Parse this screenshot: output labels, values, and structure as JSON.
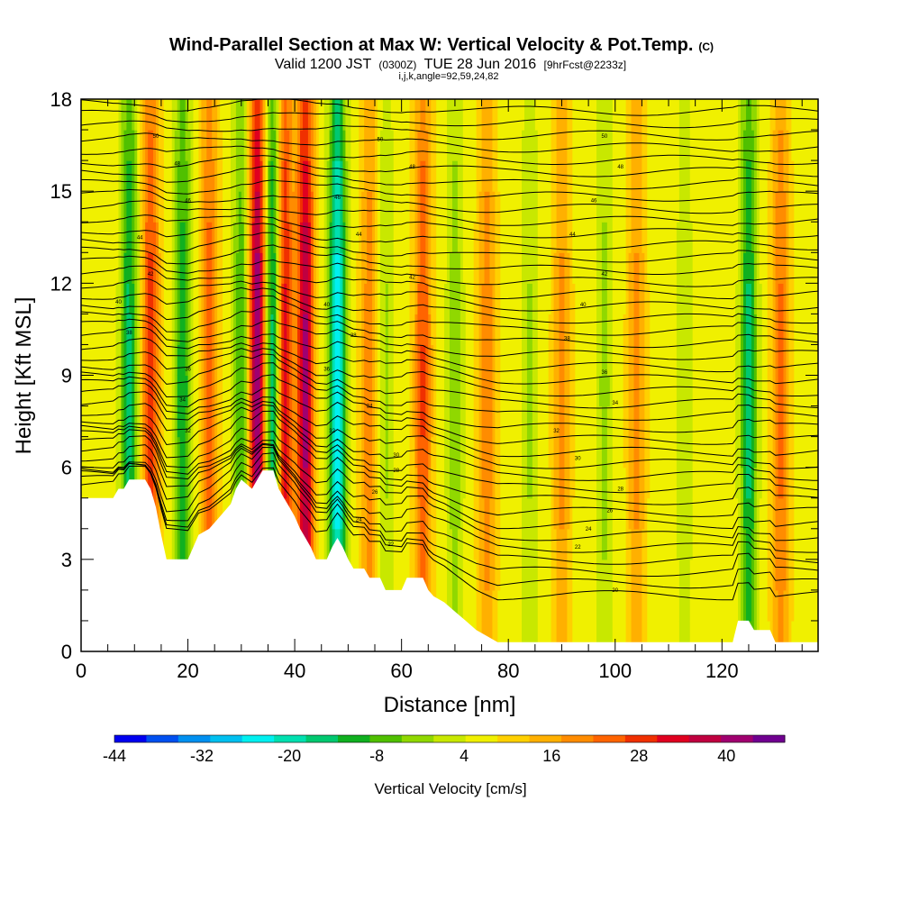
{
  "chart_data": {
    "type": "heatmap",
    "title": "Wind-Parallel Section at Max W: Vertical Velocity & Pot.Temp.",
    "title_suffix": "(C)",
    "subtitle": {
      "valid": "Valid 1200 JST",
      "utc": "(0300Z)",
      "date": "TUE 28 Jun 2016",
      "forecast": "[9hrFcst@2233z]"
    },
    "indices": "i,j,k,angle=92,59,24,82",
    "xlabel": "Distance [nm]",
    "ylabel": "Height [Kft MSL]",
    "xlim": [
      0,
      138
    ],
    "ylim": [
      0,
      18
    ],
    "x_ticks": [
      0,
      20,
      40,
      60,
      80,
      100,
      120
    ],
    "y_ticks": [
      0,
      3,
      6,
      9,
      12,
      15,
      18
    ],
    "colorbar": {
      "label": "Vertical Velocity [cm/s]",
      "tick_labels": [
        "-44",
        "-32",
        "-20",
        "-8",
        "4",
        "16",
        "28",
        "40"
      ],
      "tick_values": [
        -44,
        -32,
        -20,
        -8,
        4,
        16,
        28,
        40
      ],
      "range": [
        -44,
        48
      ],
      "colors": [
        "#0000f0",
        "#0050f0",
        "#0090f0",
        "#00c0f0",
        "#00f0f0",
        "#00e0b0",
        "#00c870",
        "#10b020",
        "#50c000",
        "#90d800",
        "#c8e800",
        "#f0f000",
        "#ffd000",
        "#ffb000",
        "#ff8c00",
        "#ff6400",
        "#f03000",
        "#e00020",
        "#c00040",
        "#a00070",
        "#700090"
      ]
    },
    "updrafts": [
      {
        "x": 9,
        "w": -22
      },
      {
        "x": 13,
        "w": 22
      },
      {
        "x": 19,
        "w": -20
      },
      {
        "x": 24,
        "w": 18
      },
      {
        "x": 30,
        "w": -16
      },
      {
        "x": 33,
        "w": 38
      },
      {
        "x": 36,
        "w": -28
      },
      {
        "x": 38,
        "w": 30
      },
      {
        "x": 42,
        "w": 34
      },
      {
        "x": 48,
        "w": -34
      },
      {
        "x": 54,
        "w": 14
      },
      {
        "x": 57,
        "w": -8
      },
      {
        "x": 64,
        "w": 20
      },
      {
        "x": 70,
        "w": -10
      },
      {
        "x": 76,
        "w": 14
      },
      {
        "x": 84,
        "w": -8
      },
      {
        "x": 90,
        "w": 12
      },
      {
        "x": 98,
        "w": -9
      },
      {
        "x": 104,
        "w": 12
      },
      {
        "x": 113,
        "w": -6
      },
      {
        "x": 125,
        "w": -22
      },
      {
        "x": 131,
        "w": 16
      }
    ],
    "terrain_kft": [
      [
        0,
        5.0
      ],
      [
        6,
        5.0
      ],
      [
        7,
        5.3
      ],
      [
        8,
        5.3
      ],
      [
        9,
        5.6
      ],
      [
        12,
        5.6
      ],
      [
        13,
        5.3
      ],
      [
        14,
        4.7
      ],
      [
        15,
        3.8
      ],
      [
        16,
        3.0
      ],
      [
        20,
        3.0
      ],
      [
        21,
        3.4
      ],
      [
        22,
        3.8
      ],
      [
        24,
        4.0
      ],
      [
        26,
        4.4
      ],
      [
        28,
        4.8
      ],
      [
        29,
        5.3
      ],
      [
        30,
        5.6
      ],
      [
        32,
        5.3
      ],
      [
        33,
        5.6
      ],
      [
        34,
        5.9
      ],
      [
        36,
        5.9
      ],
      [
        37,
        5.3
      ],
      [
        38,
        5.0
      ],
      [
        39,
        4.7
      ],
      [
        40,
        4.4
      ],
      [
        41,
        4.0
      ],
      [
        42,
        3.7
      ],
      [
        43,
        3.4
      ],
      [
        44,
        3.0
      ],
      [
        46,
        3.0
      ],
      [
        47,
        3.4
      ],
      [
        48,
        3.7
      ],
      [
        49,
        3.4
      ],
      [
        50,
        3.0
      ],
      [
        51,
        2.7
      ],
      [
        53,
        2.7
      ],
      [
        54,
        2.4
      ],
      [
        56,
        2.4
      ],
      [
        57,
        2.0
      ],
      [
        60,
        2.0
      ],
      [
        61,
        2.4
      ],
      [
        64,
        2.4
      ],
      [
        65,
        2.0
      ],
      [
        66,
        1.8
      ],
      [
        68,
        1.6
      ],
      [
        70,
        1.3
      ],
      [
        72,
        1.0
      ],
      [
        74,
        0.7
      ],
      [
        76,
        0.5
      ],
      [
        78,
        0.3
      ],
      [
        122,
        0.3
      ],
      [
        123,
        1.0
      ],
      [
        125,
        1.0
      ],
      [
        126,
        0.7
      ],
      [
        129,
        0.7
      ],
      [
        130,
        0.3
      ],
      [
        138,
        0.3
      ]
    ],
    "contour_labels": [
      {
        "x": 14,
        "y": 16.8,
        "text": "50"
      },
      {
        "x": 18,
        "y": 15.9,
        "text": "48"
      },
      {
        "x": 20,
        "y": 14.7,
        "text": "46"
      },
      {
        "x": 11,
        "y": 13.5,
        "text": "44"
      },
      {
        "x": 13,
        "y": 12.3,
        "text": "42"
      },
      {
        "x": 7,
        "y": 11.4,
        "text": "40"
      },
      {
        "x": 9,
        "y": 10.4,
        "text": "38"
      },
      {
        "x": 20,
        "y": 9.2,
        "text": "36"
      },
      {
        "x": 19,
        "y": 8.2,
        "text": "34"
      },
      {
        "x": 20,
        "y": 7.2,
        "text": "32"
      },
      {
        "x": 56,
        "y": 16.7,
        "text": "50"
      },
      {
        "x": 62,
        "y": 15.8,
        "text": "48"
      },
      {
        "x": 48,
        "y": 14.8,
        "text": "46"
      },
      {
        "x": 52,
        "y": 13.6,
        "text": "44"
      },
      {
        "x": 62,
        "y": 12.2,
        "text": "42"
      },
      {
        "x": 46,
        "y": 11.3,
        "text": "40"
      },
      {
        "x": 51,
        "y": 10.3,
        "text": "38"
      },
      {
        "x": 46,
        "y": 9.2,
        "text": "36"
      },
      {
        "x": 54,
        "y": 8.0,
        "text": "34"
      },
      {
        "x": 47,
        "y": 7.2,
        "text": "32"
      },
      {
        "x": 59,
        "y": 6.4,
        "text": "30"
      },
      {
        "x": 59,
        "y": 5.9,
        "text": "28"
      },
      {
        "x": 55,
        "y": 5.2,
        "text": "26"
      },
      {
        "x": 52,
        "y": 4.3,
        "text": "24"
      },
      {
        "x": 58,
        "y": 3.5,
        "text": "22"
      },
      {
        "x": 98,
        "y": 16.8,
        "text": "50"
      },
      {
        "x": 101,
        "y": 15.8,
        "text": "48"
      },
      {
        "x": 96,
        "y": 14.7,
        "text": "46"
      },
      {
        "x": 92,
        "y": 13.6,
        "text": "44"
      },
      {
        "x": 98,
        "y": 12.3,
        "text": "42"
      },
      {
        "x": 94,
        "y": 11.3,
        "text": "40"
      },
      {
        "x": 91,
        "y": 10.2,
        "text": "38"
      },
      {
        "x": 98,
        "y": 9.1,
        "text": "36"
      },
      {
        "x": 100,
        "y": 8.1,
        "text": "34"
      },
      {
        "x": 89,
        "y": 7.2,
        "text": "32"
      },
      {
        "x": 93,
        "y": 6.3,
        "text": "30"
      },
      {
        "x": 101,
        "y": 5.3,
        "text": "28"
      },
      {
        "x": 99,
        "y": 4.6,
        "text": "26"
      },
      {
        "x": 95,
        "y": 4.0,
        "text": "24"
      },
      {
        "x": 93,
        "y": 3.4,
        "text": "22"
      },
      {
        "x": 100,
        "y": 2.0,
        "text": "20"
      }
    ]
  }
}
